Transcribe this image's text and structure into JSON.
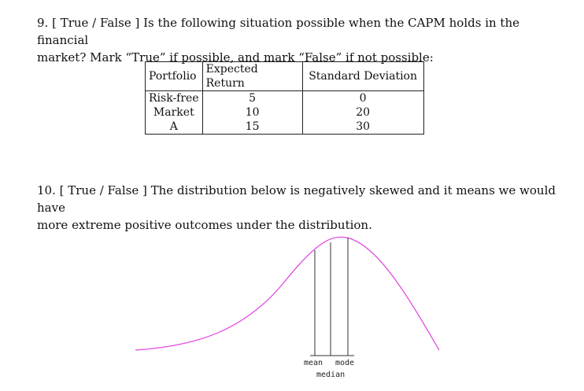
{
  "q9": {
    "line1": "9. [ True / False ] Is the following situation possible when the CAPM holds in the financial",
    "line2": "market? Mark “True” if possible, and mark “False” if not possible:"
  },
  "table": {
    "headers": [
      "Portfolio",
      "Expected Return",
      "Standard Deviation"
    ],
    "rows": [
      [
        "Risk-free",
        "5",
        "0"
      ],
      [
        "Market",
        "10",
        "20"
      ],
      [
        "A",
        "15",
        "30"
      ]
    ]
  },
  "q10": {
    "line1": "10. [ True / False ] The distribution below is negatively skewed and it means we would have",
    "line2": "more extreme positive outcomes under the distribution."
  },
  "figure": {
    "labels": {
      "mean": "mean",
      "mode": "mode",
      "median": "median"
    },
    "curve_color": "#e040e0"
  }
}
